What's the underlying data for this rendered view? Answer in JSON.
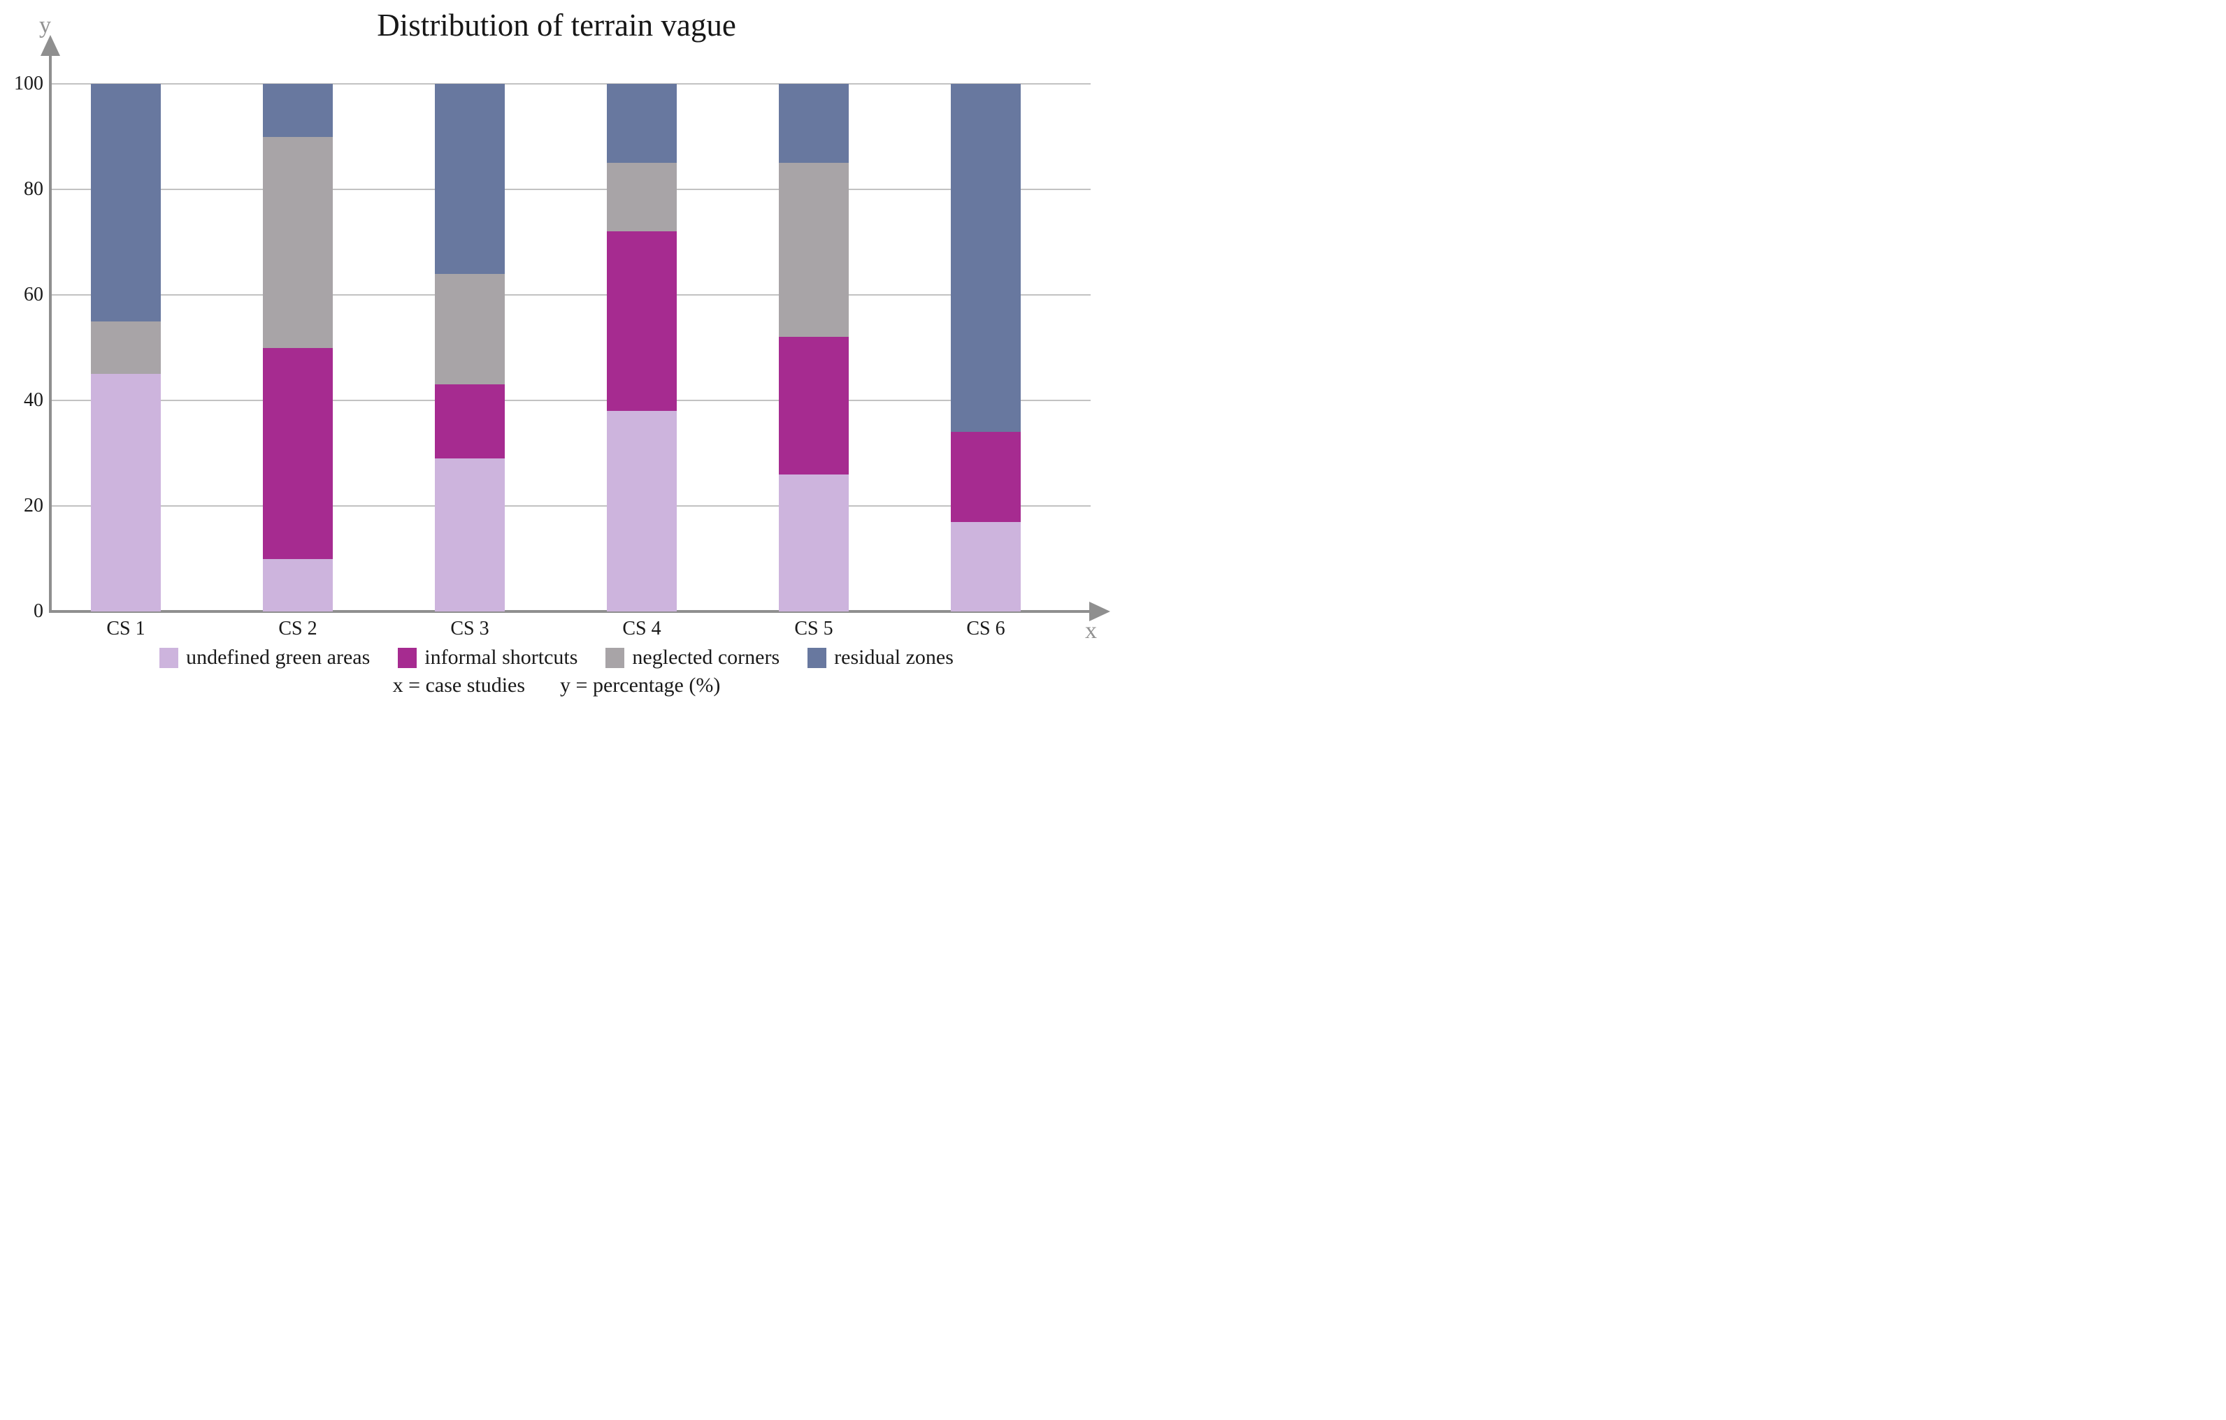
{
  "title": "Distribution of terrain vague",
  "axis_labels": {
    "x": "x",
    "y": "y"
  },
  "caption": {
    "x_def": "x = case studies",
    "y_def": "y = percentage (%)"
  },
  "colors": {
    "axis": "#8f8f8f",
    "gridline": "#c2c2c2",
    "text": "#1a1a1a",
    "axis_letter": "#929292",
    "background": "#ffffff"
  },
  "chart_data": {
    "type": "bar",
    "stacked": true,
    "title": "Distribution of terrain vague",
    "categories": [
      "CS 1",
      "CS 2",
      "CS 3",
      "CS 4",
      "CS 5",
      "CS 6"
    ],
    "series": [
      {
        "name": "undefined green areas",
        "color": "#cdb4dd",
        "values": [
          45,
          10,
          29,
          38,
          26,
          17
        ]
      },
      {
        "name": "informal shortcuts",
        "color": "#a62b90",
        "values": [
          0,
          40,
          14,
          34,
          26,
          17
        ]
      },
      {
        "name": "neglected corners",
        "color": "#a8a4a7",
        "values": [
          10,
          40,
          21,
          13,
          33,
          0
        ]
      },
      {
        "name": "residual zones",
        "color": "#68789f",
        "values": [
          45,
          10,
          36,
          15,
          15,
          66
        ]
      }
    ],
    "xlabel": "case studies",
    "ylabel": "percentage (%)",
    "ylim": [
      0,
      100
    ],
    "y_ticks": [
      0,
      20,
      40,
      60,
      80,
      100
    ],
    "grid": "horizontal",
    "legend_position": "bottom"
  }
}
